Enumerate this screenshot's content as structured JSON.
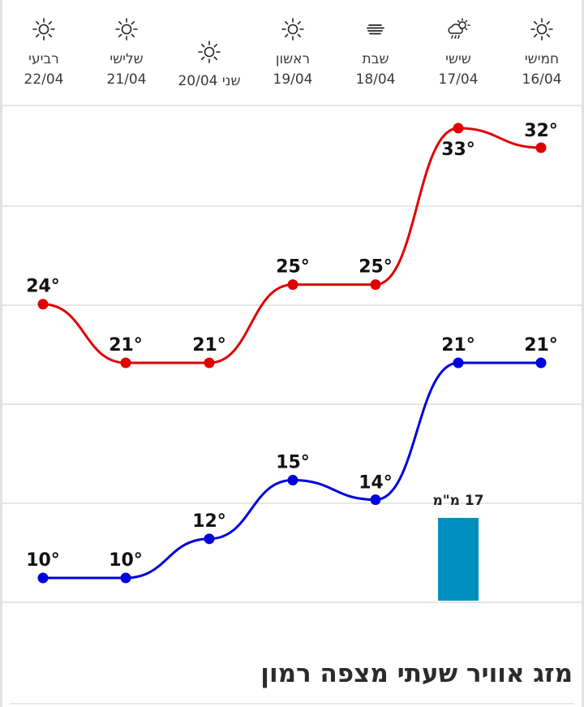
{
  "title": "מזג אוויר שעתי מצפה רמון",
  "days": [
    {
      "name": "חמישי",
      "date": "16/04",
      "icon": "sun-icon"
    },
    {
      "name": "שישי",
      "date": "17/04",
      "icon": "cloud-rain-sun-icon"
    },
    {
      "name": "שבת",
      "date": "18/04",
      "icon": "haze-icon"
    },
    {
      "name": "ראשון",
      "date": "19/04",
      "icon": "sun-icon"
    },
    {
      "name": "שני 20/04",
      "date": "",
      "icon": "sun-icon"
    },
    {
      "name": "שלישי",
      "date": "21/04",
      "icon": "sun-icon"
    },
    {
      "name": "רביעי",
      "date": "22/04",
      "icon": "sun-icon"
    }
  ],
  "chart_data": {
    "type": "line",
    "categories": [
      "16/04",
      "17/04",
      "18/04",
      "19/04",
      "20/04",
      "21/04",
      "22/04"
    ],
    "x_direction": "right-to-left",
    "series": [
      {
        "name": "",
        "color": "#e00000",
        "values": [
          32,
          33,
          25,
          25,
          21,
          21,
          24
        ]
      },
      {
        "name": "",
        "color": "#0000dd",
        "values": [
          21,
          21,
          14,
          15,
          12,
          10,
          10
        ]
      }
    ],
    "labels": {
      "high": [
        "32°",
        "33°",
        "25°",
        "25°",
        "21°",
        "21°",
        "24°"
      ],
      "low": [
        "21°",
        "21°",
        "14°",
        "15°",
        "12°",
        "10°",
        "10°"
      ]
    },
    "precipitation": {
      "type": "bar",
      "color": "#0090bf",
      "values": [
        0,
        17,
        0,
        0,
        0,
        0,
        0
      ],
      "labels": [
        "",
        "17 מ\"מ",
        "",
        "",
        "",
        "",
        ""
      ]
    },
    "ylim": [
      6,
      37
    ],
    "grid": true
  }
}
